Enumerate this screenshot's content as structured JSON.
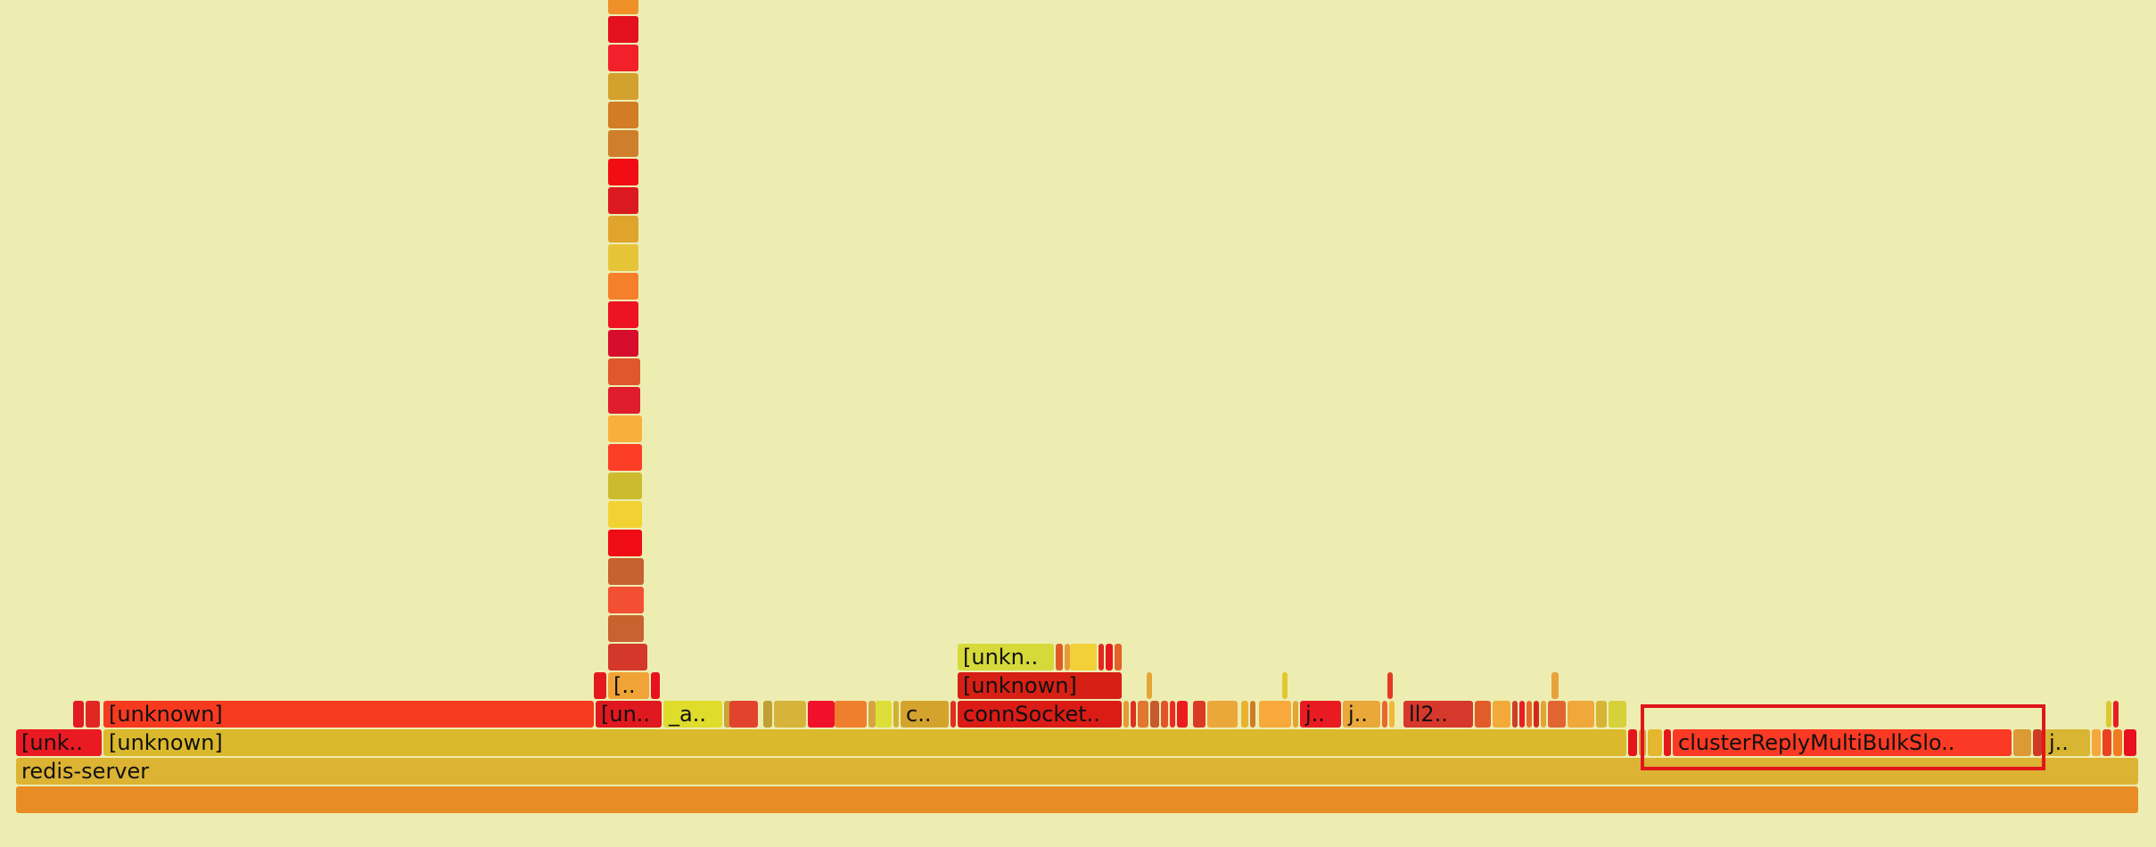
{
  "frames": {
    "root": "",
    "redis_server": "redis-server",
    "unk_short": "[unk..",
    "unknown_main": "[unknown]",
    "unknown_left": "[unknown]",
    "un_short": "[un..",
    "a_short": "_a..",
    "c_short": "c..",
    "connsocket": "connSocket..",
    "j1": "j..",
    "j2": "j..",
    "ll2": "ll2..",
    "cluster": "clusterReplyMultiBulkSlo..",
    "j3": "j..",
    "bracket_short": "[..",
    "unknown_mid": "[unknown]",
    "unkn_top": "[unkn.."
  },
  "highlight": "clusterReplyMultiBulkSlo.."
}
